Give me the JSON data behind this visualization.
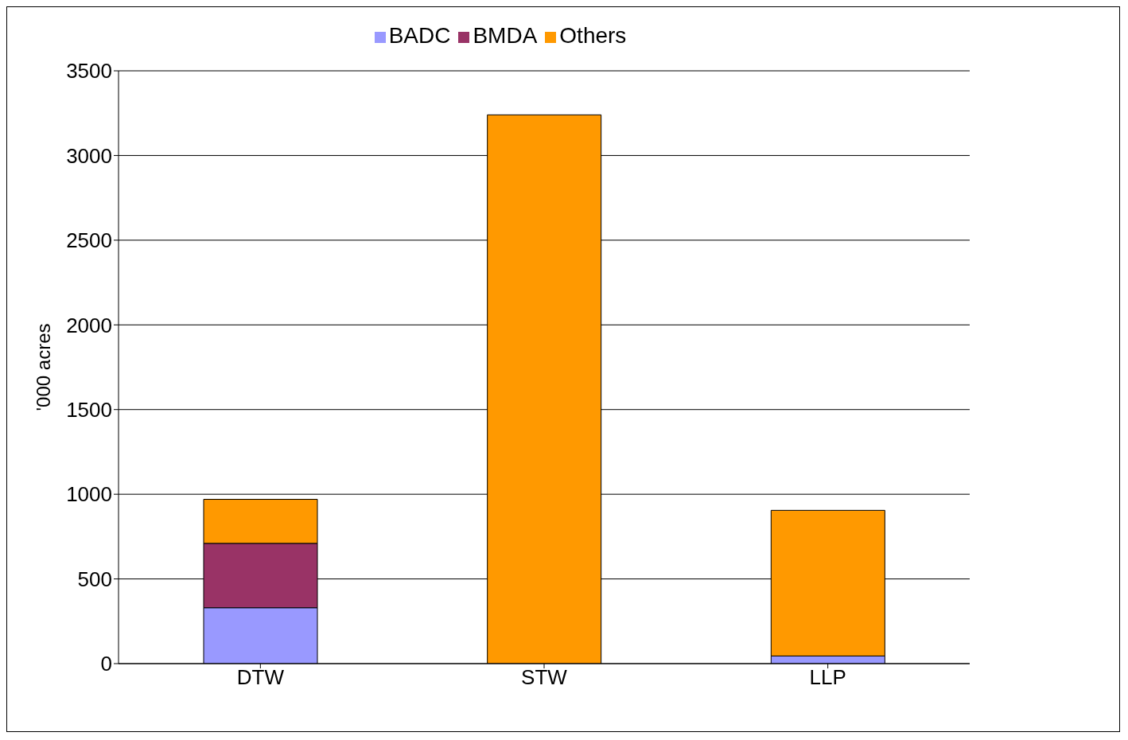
{
  "chart_data": {
    "type": "bar",
    "ylabel": "'000 acres",
    "categories": [
      "DTW",
      "STW",
      "LLP"
    ],
    "stacked": true,
    "series": [
      {
        "name": "BADC",
        "color": "#9999ff",
        "values": [
          330,
          0,
          45
        ]
      },
      {
        "name": "BMDA",
        "color": "#993366",
        "values": [
          380,
          0,
          0
        ]
      },
      {
        "name": "Others",
        "color": "#ff9900",
        "values": [
          260,
          3240,
          860
        ]
      }
    ],
    "ylim": [
      0,
      3500
    ],
    "yticks": [
      0,
      500,
      1000,
      1500,
      2000,
      2500,
      3000,
      3500
    ],
    "grid": "y",
    "legend": "top"
  }
}
